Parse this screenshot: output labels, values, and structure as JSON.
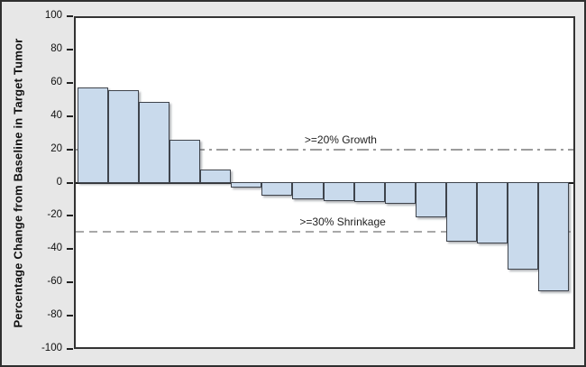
{
  "chart_data": {
    "type": "bar",
    "title": "",
    "xlabel": "",
    "ylabel": "Percentage Change from Baseline in Target Tumor",
    "ylim": [
      -100,
      100
    ],
    "y_ticks": [
      100,
      80,
      60,
      40,
      20,
      0,
      -20,
      -40,
      -60,
      -80,
      -100
    ],
    "values": [
      58,
      56,
      49,
      26,
      8,
      -3,
      -8,
      -10,
      -11,
      -12,
      -13,
      -21,
      -36,
      -37,
      -53,
      -66
    ],
    "baseline": 0,
    "grid": "off",
    "reference_lines": [
      {
        "y": 20,
        "label": ">=20% Growth",
        "style": "dash-dot"
      },
      {
        "y": -30,
        "label": ">=30% Shrinkage",
        "style": "dashed"
      }
    ],
    "colors": {
      "bar_fill": "#c9daec",
      "bar_border": "#3f444c",
      "figure_background": "#e7e7e7",
      "plot_background": "#ffffff",
      "frame": "#333333",
      "reference_line": "#9c9c9c",
      "text": "#111111"
    }
  }
}
